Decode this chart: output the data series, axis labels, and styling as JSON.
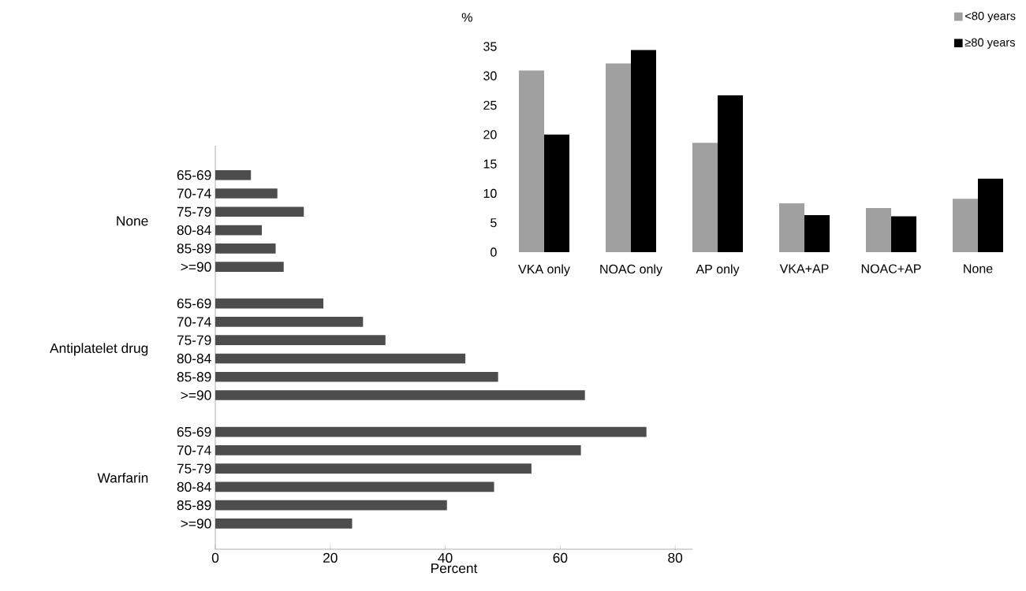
{
  "chart_data": [
    {
      "type": "bar",
      "orientation": "horizontal",
      "xlabel": "Percent",
      "xlim": [
        0,
        83
      ],
      "xticks": [
        0,
        20,
        40,
        60,
        80
      ],
      "categories": [
        "65-69",
        "70-74",
        "75-79",
        "80-84",
        "85-89",
        ">=90",
        null,
        "65-69",
        "70-74",
        "75-79",
        "80-84",
        "85-89",
        ">=90",
        null,
        "65-69",
        "70-74",
        "75-79",
        "80-84",
        "85-89",
        ">=90"
      ],
      "annotations": [
        "None",
        "Antiplatelet drug",
        "Warfarin"
      ],
      "series": [
        {
          "color": "#4d4d4d",
          "values": [
            6.2,
            10.8,
            15.4,
            8.1,
            10.5,
            11.9,
            null,
            18.8,
            25.7,
            29.6,
            43.5,
            49.2,
            64.3,
            null,
            75,
            63.6,
            55,
            48.5,
            40.3,
            23.8
          ]
        }
      ]
    },
    {
      "type": "bar",
      "ylabel": "%",
      "ylim": [
        0,
        35
      ],
      "yticks": [
        0,
        5,
        10,
        15,
        20,
        25,
        30,
        35
      ],
      "legend": "top right",
      "categories": [
        "VKA only",
        "NOAC only",
        "AP only",
        "VKA+AP",
        "NOAC+AP",
        "None"
      ],
      "series": [
        {
          "name": "<80 years",
          "color": "#a0a0a0",
          "values": [
            30.9,
            32.1,
            18.6,
            8.3,
            7.5,
            9.1
          ]
        },
        {
          "name": "≥80 years",
          "color": "#000000",
          "values": [
            20,
            34.4,
            26.7,
            6.3,
            6.1,
            12.5
          ]
        }
      ]
    }
  ]
}
